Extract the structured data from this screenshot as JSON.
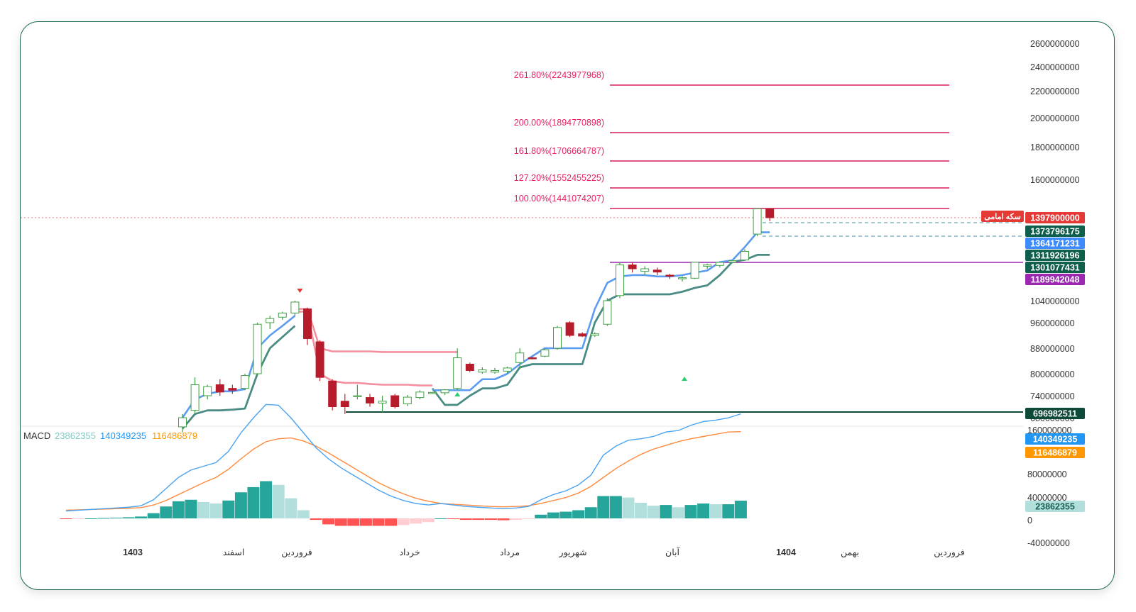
{
  "chart_data": [
    {
      "type": "candlestick",
      "title": "",
      "price_axis_ticks": [
        2600000000,
        2400000000,
        2200000000,
        2000000000,
        1800000000,
        1600000000,
        1040000000,
        960000000,
        880000000,
        800000000,
        740000000,
        680000000
      ],
      "price_axis_tick_labels": [
        "2600000000",
        "2400000000",
        "2200000000",
        "2000000000",
        "1800000000",
        "1600000000",
        "1040000000",
        "960000000",
        "880000000",
        "800000000",
        "740000000",
        "680000000"
      ],
      "time_axis_labels": [
        "1403",
        "اسفند",
        "فروردین",
        "خرداد",
        "مرداد",
        "شهریور",
        "آبان",
        "1404",
        "بهمن",
        "فروردین"
      ],
      "fibonacci_levels": [
        {
          "label": "261.80%(2243977968)",
          "value": 2243977968
        },
        {
          "label": "200.00%(1894770898)",
          "value": 1894770898
        },
        {
          "label": "161.80%(1706664787)",
          "value": 1706664787
        },
        {
          "label": "127.20%(1552455225)",
          "value": 1552455225
        },
        {
          "label": "100.00%(1441074207)",
          "value": 1441074207
        }
      ],
      "horizontal_lines": [
        {
          "value": 1189942048,
          "color": "#9c27b0"
        },
        {
          "value": 696982511,
          "color": "#0e4a3a"
        }
      ],
      "price_badges": [
        {
          "text": "1397900000",
          "color": "#e53935"
        },
        {
          "text": "1373796175",
          "color": "#0e5f4b"
        },
        {
          "text": "1364171231",
          "color": "#3d8bfd"
        },
        {
          "text": "1311926196",
          "color": "#0e5f4b"
        },
        {
          "text": "1301077431",
          "color": "#0e5f4b"
        },
        {
          "text": "1189942048",
          "color": "#9c27b0"
        },
        {
          "text": "696982511",
          "color": "#0e4a3a"
        }
      ],
      "symbol_tag": "سکه امامی",
      "candles": [
        {
          "o": 655000000,
          "h": 690000000,
          "l": 640000000,
          "c": 680000000
        },
        {
          "o": 700000000,
          "h": 790000000,
          "l": 690000000,
          "c": 770000000
        },
        {
          "o": 740000000,
          "h": 770000000,
          "l": 730000000,
          "c": 765000000
        },
        {
          "o": 770000000,
          "h": 785000000,
          "l": 740000000,
          "c": 750000000
        },
        {
          "o": 760000000,
          "h": 770000000,
          "l": 745000000,
          "c": 755000000
        },
        {
          "o": 760000000,
          "h": 800000000,
          "l": 755000000,
          "c": 795000000
        },
        {
          "o": 800000000,
          "h": 960000000,
          "l": 795000000,
          "c": 955000000
        },
        {
          "o": 960000000,
          "h": 985000000,
          "l": 940000000,
          "c": 975000000
        },
        {
          "o": 980000000,
          "h": 1000000000,
          "l": 970000000,
          "c": 995000000
        },
        {
          "o": 995000000,
          "h": 1040000000,
          "l": 985000000,
          "c": 1035000000
        },
        {
          "o": 1010000000,
          "h": 1015000000,
          "l": 890000000,
          "c": 910000000
        },
        {
          "o": 900000000,
          "h": 905000000,
          "l": 780000000,
          "c": 790000000
        },
        {
          "o": 780000000,
          "h": 785000000,
          "l": 700000000,
          "c": 710000000
        },
        {
          "o": 725000000,
          "h": 745000000,
          "l": 690000000,
          "c": 710000000
        },
        {
          "o": 740000000,
          "h": 770000000,
          "l": 730000000,
          "c": 740000000
        },
        {
          "o": 735000000,
          "h": 745000000,
          "l": 710000000,
          "c": 720000000
        },
        {
          "o": 720000000,
          "h": 740000000,
          "l": 695000000,
          "c": 725000000
        },
        {
          "o": 740000000,
          "h": 745000000,
          "l": 705000000,
          "c": 710000000
        },
        {
          "o": 718000000,
          "h": 742000000,
          "l": 712000000,
          "c": 736000000
        },
        {
          "o": 735000000,
          "h": 755000000,
          "l": 730000000,
          "c": 750000000
        },
        {
          "o": 747000000,
          "h": 750000000,
          "l": 745000000,
          "c": 749000000
        },
        {
          "o": 748000000,
          "h": 758000000,
          "l": 742000000,
          "c": 756000000
        },
        {
          "o": 760000000,
          "h": 880000000,
          "l": 755000000,
          "c": 850000000
        },
        {
          "o": 830000000,
          "h": 835000000,
          "l": 805000000,
          "c": 810000000
        },
        {
          "o": 805000000,
          "h": 820000000,
          "l": 800000000,
          "c": 812000000
        },
        {
          "o": 805000000,
          "h": 818000000,
          "l": 800000000,
          "c": 810000000
        },
        {
          "o": 808000000,
          "h": 822000000,
          "l": 802000000,
          "c": 818000000
        },
        {
          "o": 835000000,
          "h": 880000000,
          "l": 815000000,
          "c": 865000000
        },
        {
          "o": 850000000,
          "h": 853000000,
          "l": 845000000,
          "c": 848000000
        },
        {
          "o": 855000000,
          "h": 880000000,
          "l": 852000000,
          "c": 875000000
        },
        {
          "o": 880000000,
          "h": 950000000,
          "l": 875000000,
          "c": 945000000
        },
        {
          "o": 960000000,
          "h": 965000000,
          "l": 915000000,
          "c": 920000000
        },
        {
          "o": 925000000,
          "h": 930000000,
          "l": 915000000,
          "c": 918000000
        },
        {
          "o": 920000000,
          "h": 930000000,
          "l": 915000000,
          "c": 925000000
        },
        {
          "o": 955000000,
          "h": 1050000000,
          "l": 950000000,
          "c": 1040000000
        },
        {
          "o": 1060000000,
          "h": 1200000000,
          "l": 1050000000,
          "c": 1180000000
        },
        {
          "o": 1180000000,
          "h": 1195000000,
          "l": 1150000000,
          "c": 1165000000
        },
        {
          "o": 1155000000,
          "h": 1175000000,
          "l": 1140000000,
          "c": 1165000000
        },
        {
          "o": 1160000000,
          "h": 1170000000,
          "l": 1140000000,
          "c": 1152000000
        },
        {
          "o": 1140000000,
          "h": 1145000000,
          "l": 1125000000,
          "c": 1138000000
        },
        {
          "o": 1128000000,
          "h": 1135000000,
          "l": 1115000000,
          "c": 1130000000
        },
        {
          "o": 1128000000,
          "h": 1200000000,
          "l": 1125000000,
          "c": 1195000000
        },
        {
          "o": 1175000000,
          "h": 1185000000,
          "l": 1165000000,
          "c": 1180000000
        },
        {
          "o": 1178000000,
          "h": 1195000000,
          "l": 1170000000,
          "c": 1190000000
        },
        {
          "o": 1200000000,
          "h": 1260000000,
          "l": 1195000000,
          "c": 1255000000
        },
        {
          "o": 1285000000,
          "h": 1325000000,
          "l": 1280000000,
          "c": 1320000000
        },
        {
          "o": 1360000000,
          "h": 1441000000,
          "l": 1355000000,
          "c": 1440000000
        },
        {
          "o": 1440000000,
          "h": 1441000000,
          "l": 1390000000,
          "c": 1397900000
        }
      ],
      "upper_band": [
        null,
        null,
        null,
        null,
        null,
        null,
        null,
        null,
        null,
        1010000000,
        1010000000,
        880000000,
        870000000,
        870000000,
        870000000,
        870000000,
        868000000,
        868000000,
        868000000,
        868000000,
        868000000,
        868000000,
        868000000,
        null,
        null,
        null,
        null,
        null,
        null,
        null,
        null,
        null,
        null,
        null,
        null,
        null,
        null,
        null,
        null,
        null,
        null,
        null,
        null,
        null,
        null,
        null,
        null,
        null
      ],
      "lower_band": [
        null,
        null,
        null,
        null,
        null,
        null,
        null,
        null,
        null,
        1000000000,
        1000000000,
        800000000,
        780000000,
        775000000,
        775000000,
        772000000,
        770000000,
        770000000,
        770000000,
        768000000,
        768000000,
        null,
        null,
        null,
        null,
        null,
        null,
        null,
        null,
        null,
        null,
        null,
        null,
        null,
        null,
        null,
        null,
        null,
        null,
        null,
        null,
        null,
        null,
        null,
        null,
        null,
        null,
        null
      ],
      "supertrend_fast": [
        680000000,
        730000000,
        745000000,
        752000000,
        752000000,
        758000000,
        880000000,
        920000000,
        950000000,
        985000000,
        null,
        null,
        null,
        null,
        null,
        null,
        null,
        null,
        null,
        null,
        755000000,
        755000000,
        755000000,
        755000000,
        785000000,
        785000000,
        800000000,
        830000000,
        855000000,
        880000000,
        880000000,
        880000000,
        880000000,
        1010000000,
        1110000000,
        1135000000,
        1140000000,
        1140000000,
        1135000000,
        1135000000,
        1140000000,
        1150000000,
        1158000000,
        1200000000,
        1270000000,
        1330000000,
        1364171231,
        1364171231
      ],
      "supertrend_slow": [
        650000000,
        690000000,
        700000000,
        700000000,
        702000000,
        705000000,
        800000000,
        880000000,
        915000000,
        950000000,
        null,
        null,
        null,
        null,
        null,
        null,
        null,
        null,
        null,
        null,
        760000000,
        715000000,
        715000000,
        740000000,
        760000000,
        760000000,
        770000000,
        820000000,
        830000000,
        830000000,
        830000000,
        830000000,
        830000000,
        960000000,
        1040000000,
        1065000000,
        1065000000,
        1065000000,
        1065000000,
        1065000000,
        1075000000,
        1090000000,
        1100000000,
        1140000000,
        1210000000,
        1290000000,
        1311926196,
        1311926196
      ]
    },
    {
      "type": "macd",
      "label": "MACD",
      "values": [
        {
          "text": "23862355",
          "color": "#80cbc4"
        },
        {
          "text": "140349235",
          "color": "#2196f3"
        },
        {
          "text": "116486879",
          "color": "#ff9800"
        }
      ],
      "y_ticks": [
        160000000,
        80000000,
        40000000,
        0,
        -40000000
      ],
      "y_tick_labels": [
        "160000000",
        "80000000",
        "40000000",
        "0",
        "-40000000"
      ],
      "macd_line": [
        10000000,
        11000000,
        12000000,
        13000000,
        14000000,
        15000000,
        17000000,
        25000000,
        40000000,
        55000000,
        65000000,
        70000000,
        75000000,
        90000000,
        115000000,
        135000000,
        153000000,
        152000000,
        135000000,
        115000000,
        95000000,
        80000000,
        68000000,
        58000000,
        48000000,
        38000000,
        30000000,
        24000000,
        20000000,
        18000000,
        20000000,
        18000000,
        16000000,
        15000000,
        14000000,
        13000000,
        14000000,
        16000000,
        25000000,
        32000000,
        37000000,
        45000000,
        58000000,
        85000000,
        97000000,
        105000000,
        107000000,
        110000000,
        116000000,
        118000000,
        125000000,
        130000000,
        132000000,
        135000000,
        140349235
      ],
      "signal_line": [
        11000000,
        11500000,
        12000000,
        12500000,
        13000000,
        13500000,
        14500000,
        18000000,
        24000000,
        32000000,
        40000000,
        48000000,
        55000000,
        66000000,
        80000000,
        93000000,
        103000000,
        107000000,
        108000000,
        104000000,
        97000000,
        88000000,
        78000000,
        68000000,
        58000000,
        48000000,
        40000000,
        33000000,
        27000000,
        23000000,
        20000000,
        19000000,
        18000000,
        17000000,
        16000000,
        15500000,
        16000000,
        17000000,
        20000000,
        24000000,
        28000000,
        34000000,
        43000000,
        55000000,
        67000000,
        77000000,
        86000000,
        93000000,
        98000000,
        103000000,
        107000000,
        110000000,
        113000000,
        116000000,
        116486879
      ],
      "histogram": [
        -1000000,
        -500000,
        0,
        500000,
        1000000,
        1500000,
        2500000,
        7000000,
        16000000,
        23000000,
        25000000,
        22000000,
        20000000,
        24000000,
        35000000,
        42000000,
        50000000,
        45000000,
        27000000,
        11000000,
        -2000000,
        -8000000,
        -10000000,
        -10000000,
        -10000000,
        -10000000,
        -10000000,
        -9000000,
        -7000000,
        -5000000,
        0,
        -1000000,
        -2000000,
        -2000000,
        -2000000,
        -2500000,
        -2000000,
        -1000000,
        5000000,
        8000000,
        9000000,
        11000000,
        15000000,
        30000000,
        30000000,
        28000000,
        21000000,
        17000000,
        18000000,
        15000000,
        18000000,
        20000000,
        19000000,
        19000000,
        23862355
      ]
    }
  ]
}
